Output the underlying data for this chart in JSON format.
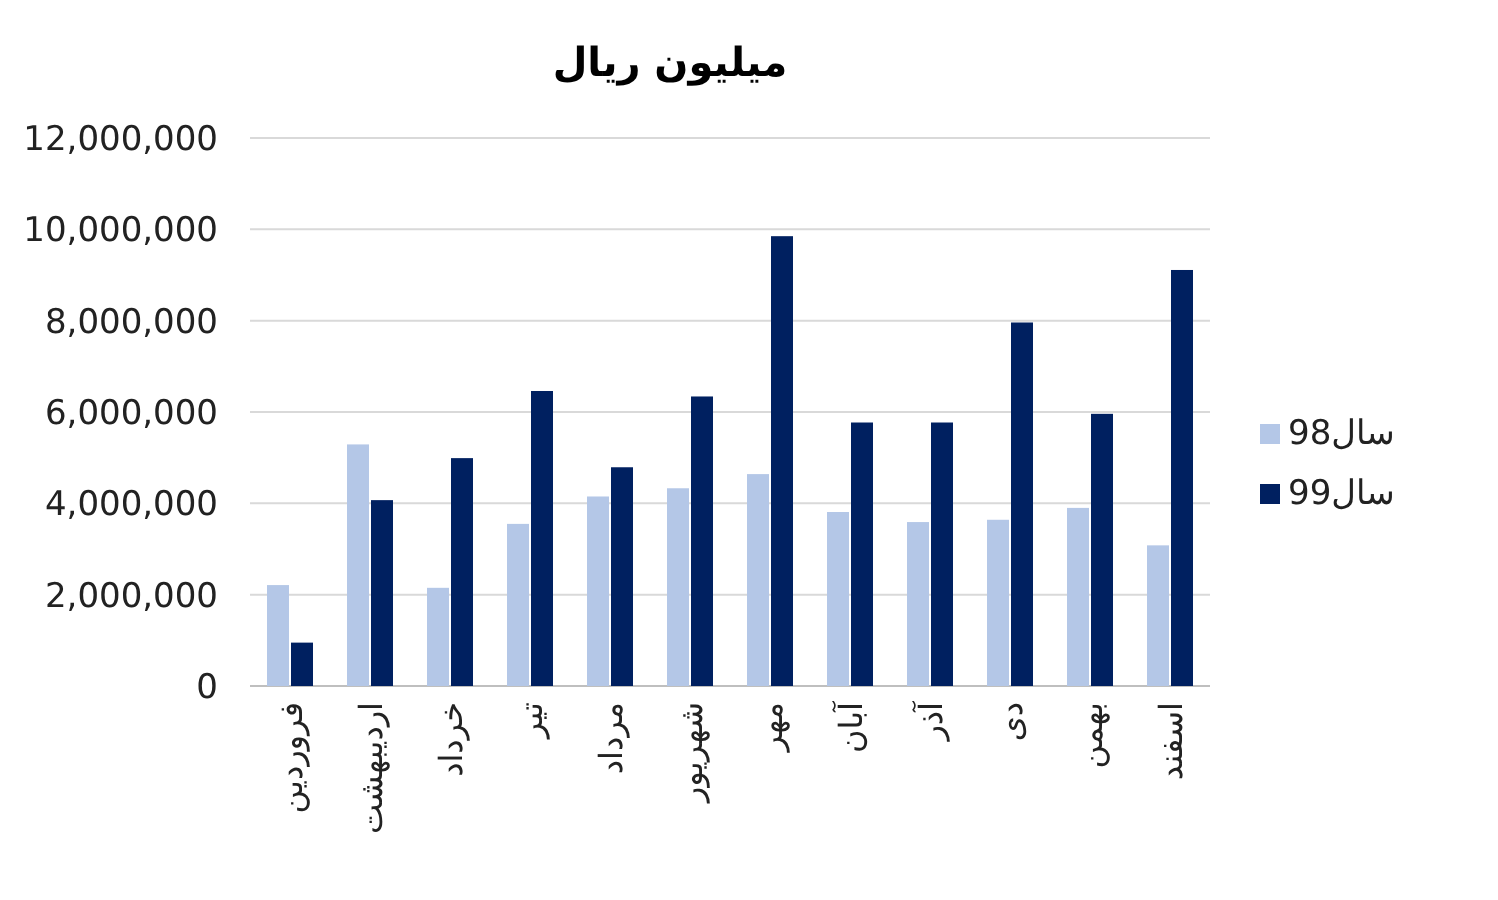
{
  "chart_data": {
    "type": "bar",
    "title": "میلیون ریال",
    "categories": [
      "فروردین",
      "اردیبهشت",
      "خرداد",
      "تیر",
      "مرداد",
      "شهریور",
      "مهر",
      "آبان",
      "آذر",
      "دی",
      "بهمن",
      "اسفند"
    ],
    "series": [
      {
        "name": "سال98",
        "color": "#b4c7e7",
        "values": [
          2210000,
          5290000,
          2150000,
          3550000,
          4150000,
          4330000,
          4640000,
          3810000,
          3590000,
          3640000,
          3900000,
          3080000
        ]
      },
      {
        "name": "سال99",
        "color": "#002060",
        "values": [
          950000,
          4070000,
          4990000,
          6460000,
          4790000,
          6340000,
          9850000,
          5770000,
          5770000,
          7960000,
          5960000,
          9110000
        ]
      }
    ],
    "ylim": [
      0,
      12000000
    ],
    "yticks": [
      {
        "value": 0,
        "label": "0"
      },
      {
        "value": 2000000,
        "label": "2,000,000"
      },
      {
        "value": 4000000,
        "label": "4,000,000"
      },
      {
        "value": 6000000,
        "label": "6,000,000"
      },
      {
        "value": 8000000,
        "label": "8,000,000"
      },
      {
        "value": 10000000,
        "label": "10,000,000"
      },
      {
        "value": 12000000,
        "label": "12,000,000"
      }
    ],
    "grid": "y",
    "legend": "right"
  }
}
